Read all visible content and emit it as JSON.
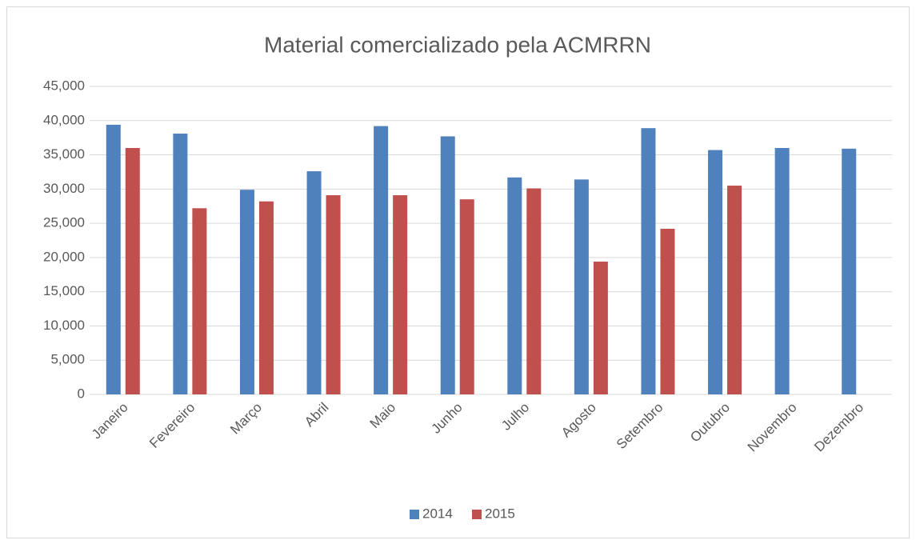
{
  "chart_data": {
    "type": "bar",
    "title": "Material comercializado pela ACMRRN",
    "categories": [
      "Janeiro",
      "Fevereiro",
      "Março",
      "Abril",
      "Maio",
      "Junho",
      "Julho",
      "Agosto",
      "Setembro",
      "Outubro",
      "Novembro",
      "Dezembro"
    ],
    "series": [
      {
        "name": "2014",
        "color": "#4f81bd",
        "values": [
          39400,
          38100,
          29900,
          32600,
          39200,
          37700,
          31700,
          31400,
          38900,
          35700,
          36000,
          35900
        ]
      },
      {
        "name": "2015",
        "color": "#c0504d",
        "values": [
          36000,
          27200,
          28200,
          29100,
          29100,
          28500,
          30100,
          19400,
          24200,
          30500,
          null,
          null
        ]
      }
    ],
    "ylim": [
      0,
      45000
    ],
    "yticks": [
      0,
      {
        "value": 5000,
        "label": "5,000"
      },
      {
        "value": 10000,
        "label": "10,000"
      },
      {
        "value": 15000,
        "label": "15,000"
      },
      {
        "value": 20000,
        "label": "20,000"
      },
      {
        "value": 25000,
        "label": "25,000"
      },
      {
        "value": 30000,
        "label": "30,000"
      },
      {
        "value": 35000,
        "label": "35,000"
      },
      {
        "value": 40000,
        "label": "40,000"
      },
      {
        "value": 45000,
        "label": "45,000"
      }
    ],
    "grid": true,
    "legend": "bottom"
  }
}
